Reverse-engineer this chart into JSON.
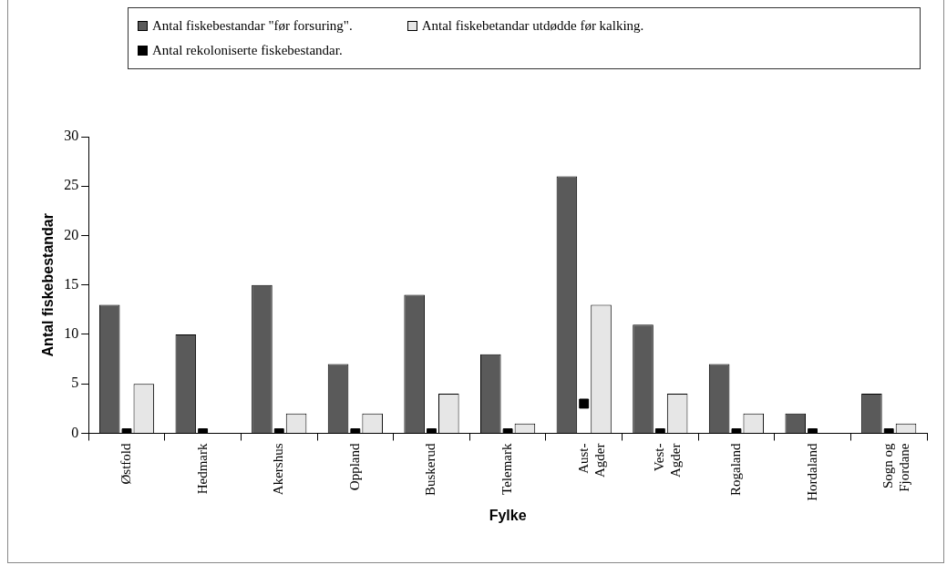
{
  "chart_data": {
    "type": "bar",
    "xlabel": "Fylke",
    "ylabel": "Antal fiskebestandar",
    "categories": [
      "Østfold",
      "Hedmark",
      "Akershus",
      "Oppland",
      "Buskerud",
      "Telemark",
      "Aust-\nAgder",
      "Vest-\nAgder",
      "Rogaland",
      "Hordaland",
      "Sogn og\nFjordane"
    ],
    "series": [
      {
        "name": "Antal fiskebestandar \"før forsuring\".",
        "color": "#5a5a5a",
        "values": [
          13,
          10,
          15,
          7,
          14,
          8,
          26,
          11,
          7,
          2,
          4
        ]
      },
      {
        "name": "Antal fiskebetandar utdødde før kalking.",
        "color": "#e6e6e6",
        "values": [
          5,
          0,
          2,
          2,
          4,
          1,
          13,
          4,
          2,
          0,
          1
        ]
      },
      {
        "name": "Antal rekoloniserte fiskebestandar.",
        "type": "scatter",
        "marker": "square",
        "color": "#000000",
        "values": [
          0,
          0,
          0,
          0,
          0,
          0,
          3,
          0,
          0,
          0,
          0
        ]
      }
    ],
    "ylim": [
      0,
      30
    ],
    "yticks": [
      0,
      5,
      10,
      15,
      20,
      25,
      30
    ],
    "grid": false,
    "legend": "top"
  }
}
